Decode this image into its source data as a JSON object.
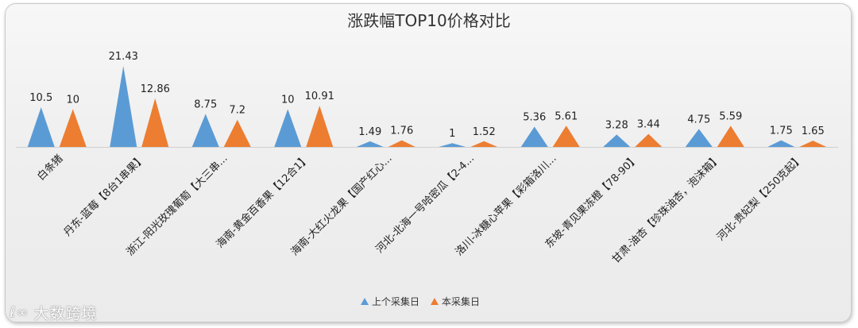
{
  "chart_data": {
    "type": "area",
    "title": "涨跌幅TOP10价格对比",
    "categories": [
      "白条猪",
      "丹东-蓝莓【8台1串果】",
      "浙江-阳光玫瑰葡萄【大三串...",
      "海南-黄金百香果【12合1】",
      "海南-大红火龙果【国产红心...",
      "河北-北海一号哈密瓜【2-4...",
      "洛川-冰糖心苹果【彩箱洛川...",
      "东坡-青见果冻橙【78-90】",
      "甘肃-油杏【珍珠油杏，泡沫箱】",
      "河北-贵妃梨【250克起】"
    ],
    "series": [
      {
        "name": "上个采集日",
        "color": "#5b9bd5",
        "values": [
          10.5,
          21.43,
          8.75,
          10,
          1.49,
          1,
          5.36,
          3.28,
          4.75,
          1.75
        ],
        "labels": [
          "10.5",
          "21.43",
          "8.75",
          "10",
          "1.49",
          "1",
          "5.36",
          "3.28",
          "4.75",
          "1.75"
        ]
      },
      {
        "name": "本采集日",
        "color": "#ed7d31",
        "values": [
          10,
          12.86,
          7.2,
          10.91,
          1.76,
          1.52,
          5.61,
          3.44,
          5.59,
          1.65
        ],
        "labels": [
          "10",
          "12.86",
          "7.2",
          "10.91",
          "1.76",
          "1.52",
          "5.61",
          "3.44",
          "5.59",
          "1.65"
        ]
      }
    ],
    "ylim": [
      0,
      22
    ],
    "legend": "bottom",
    "grid": false
  },
  "watermark": {
    "logo": "ℓ∞",
    "text": "大数跨境"
  }
}
